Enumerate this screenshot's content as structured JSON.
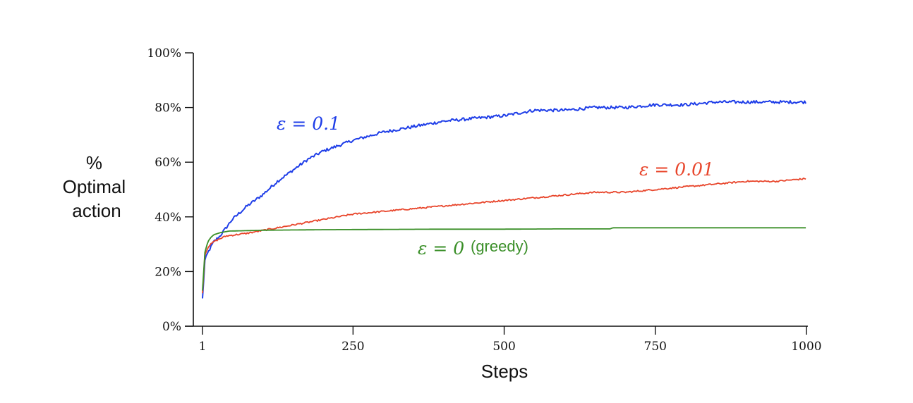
{
  "chart_data": {
    "type": "line",
    "xlabel": "Steps",
    "ylabel_lines": [
      "%",
      "Optimal",
      "action"
    ],
    "xlim": [
      1,
      1000
    ],
    "ylim": [
      0,
      100
    ],
    "xticks": [
      1,
      250,
      500,
      750,
      1000
    ],
    "xtick_labels": [
      "1",
      "250",
      "500",
      "750",
      "1000"
    ],
    "yticks": [
      0,
      20,
      40,
      60,
      80,
      100
    ],
    "ytick_labels": [
      "0%",
      "20%",
      "40%",
      "60%",
      "80%",
      "100%"
    ],
    "grid": false,
    "legend": "none",
    "series": [
      {
        "key": "eps01",
        "name": "ε = 0.1",
        "color": "#1f3ee8",
        "points": [
          [
            1,
            10
          ],
          [
            5,
            24
          ],
          [
            10,
            27
          ],
          [
            20,
            31
          ],
          [
            30,
            33
          ],
          [
            50,
            39
          ],
          [
            75,
            44
          ],
          [
            100,
            48
          ],
          [
            125,
            53
          ],
          [
            150,
            57
          ],
          [
            175,
            61
          ],
          [
            200,
            64
          ],
          [
            250,
            68
          ],
          [
            300,
            71
          ],
          [
            350,
            73
          ],
          [
            400,
            75
          ],
          [
            450,
            76
          ],
          [
            500,
            77
          ],
          [
            550,
            79
          ],
          [
            600,
            79
          ],
          [
            650,
            80
          ],
          [
            700,
            80
          ],
          [
            750,
            81
          ],
          [
            800,
            81
          ],
          [
            850,
            82
          ],
          [
            900,
            82
          ],
          [
            950,
            82
          ],
          [
            1000,
            82
          ]
        ]
      },
      {
        "key": "eps001",
        "name": "ε = 0.01",
        "color": "#e8452b",
        "points": [
          [
            1,
            12
          ],
          [
            5,
            26
          ],
          [
            10,
            29
          ],
          [
            20,
            31
          ],
          [
            40,
            33
          ],
          [
            75,
            34
          ],
          [
            100,
            35
          ],
          [
            150,
            37
          ],
          [
            200,
            39
          ],
          [
            250,
            41
          ],
          [
            300,
            42
          ],
          [
            350,
            43
          ],
          [
            400,
            44
          ],
          [
            450,
            45
          ],
          [
            500,
            46
          ],
          [
            550,
            47
          ],
          [
            600,
            48
          ],
          [
            650,
            49
          ],
          [
            700,
            49
          ],
          [
            750,
            50
          ],
          [
            800,
            51
          ],
          [
            850,
            52
          ],
          [
            900,
            53
          ],
          [
            950,
            53
          ],
          [
            1000,
            54
          ]
        ]
      },
      {
        "key": "eps0",
        "name": "ε = 0",
        "note": "(greedy)",
        "color": "#3a8f28",
        "points": [
          [
            1,
            13
          ],
          [
            5,
            27
          ],
          [
            10,
            31
          ],
          [
            15,
            32.5
          ],
          [
            20,
            33.5
          ],
          [
            30,
            34.2
          ],
          [
            45,
            34.8
          ],
          [
            100,
            35.1
          ],
          [
            200,
            35.3
          ],
          [
            300,
            35.4
          ],
          [
            400,
            35.5
          ],
          [
            500,
            35.5
          ],
          [
            600,
            35.6
          ],
          [
            675,
            35.6
          ],
          [
            680,
            36
          ],
          [
            1000,
            36
          ]
        ]
      }
    ]
  }
}
